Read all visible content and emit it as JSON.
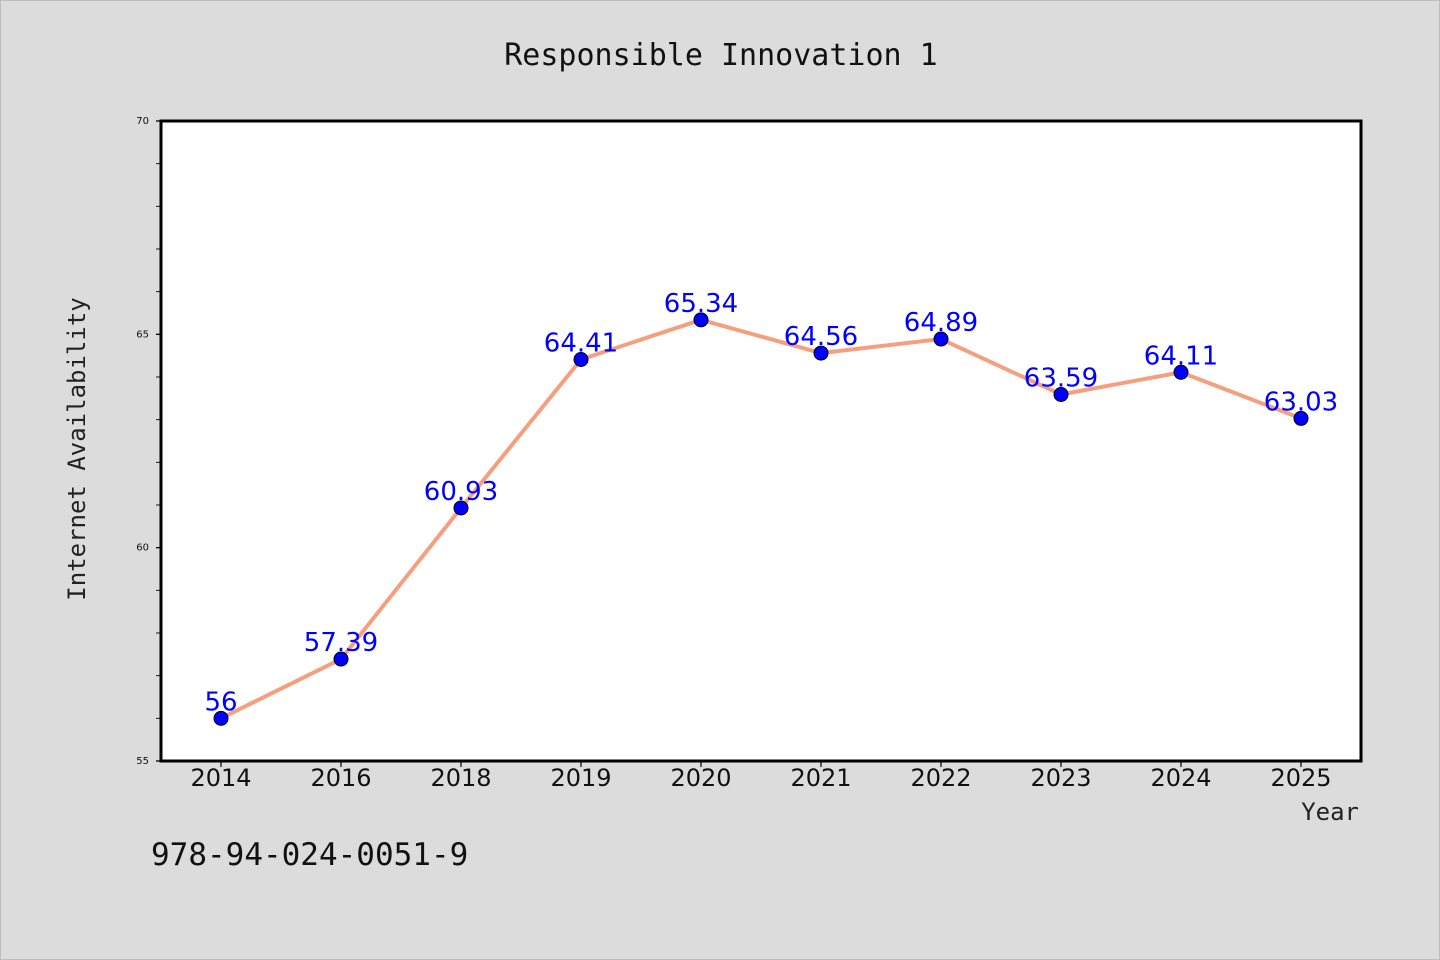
{
  "chart_data": {
    "type": "line",
    "title": "Responsible Innovation 1",
    "xlabel": "Year",
    "ylabel": "Internet Availability",
    "categories": [
      "2014",
      "2016",
      "2018",
      "2019",
      "2020",
      "2021",
      "2022",
      "2023",
      "2024",
      "2025"
    ],
    "series": [
      {
        "values": [
          56,
          57.39,
          60.93,
          64.41,
          65.34,
          64.56,
          64.89,
          63.59,
          64.11,
          63.03
        ],
        "data_labels": [
          "56",
          "57.39",
          "60.93",
          "64.41",
          "65.34",
          "64.56",
          "64.89",
          "63.59",
          "64.11",
          "63.03"
        ]
      }
    ],
    "ylim": [
      55,
      70
    ],
    "yticks": [
      "55",
      "60",
      "65",
      "70"
    ],
    "grid": false,
    "legend": "none",
    "colors": {
      "line": "#f4a07f",
      "marker": "#0000ff",
      "data_label": "#0000ff",
      "background": "#dcdcdc",
      "plot_background": "#ffffff"
    }
  },
  "footer": {
    "isbn": "978-94-024-0051-9"
  }
}
